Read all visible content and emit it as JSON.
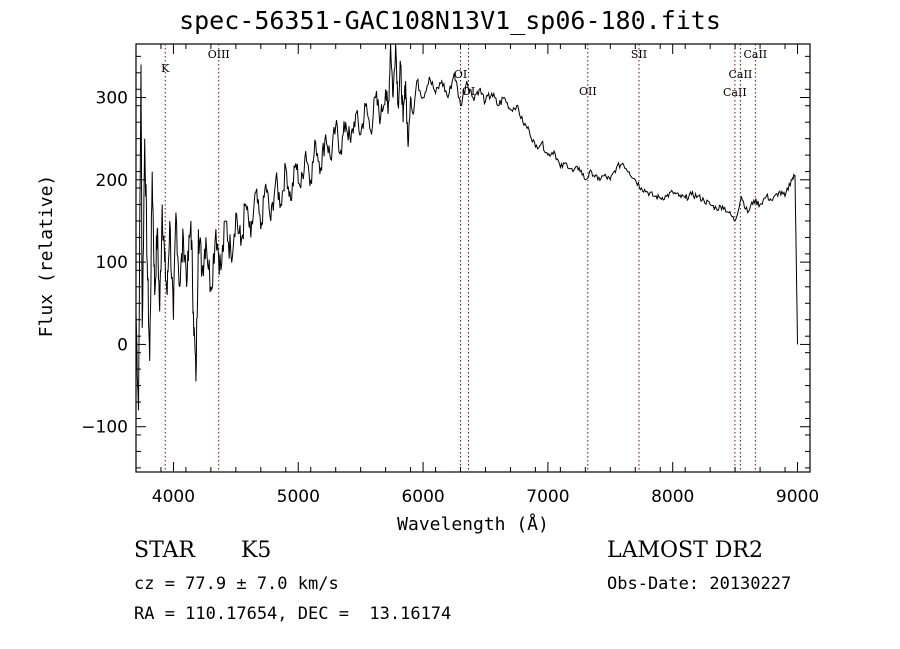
{
  "title": "spec-56351-GAC108N13V1_sp06-180.fits",
  "footer": {
    "object_class": "STAR",
    "subclass": "K5",
    "survey": "LAMOST DR2",
    "cz": "cz = 77.9 ± 7.0 km/s",
    "obs_date": "Obs-Date: 20130227",
    "radec": "RA = 110.17654, DEC =  13.16174"
  },
  "chart_data": {
    "type": "line",
    "title": "spec-56351-GAC108N13V1_sp06-180.fits",
    "xlabel": "Wavelength (Å)",
    "ylabel": "Flux (relative)",
    "xlim": [
      3700,
      9100
    ],
    "ylim": [
      -155,
      365
    ],
    "xticks": [
      {
        "value": 4000,
        "label": "4000"
      },
      {
        "value": 5000,
        "label": "5000"
      },
      {
        "value": 6000,
        "label": "6000"
      },
      {
        "value": 7000,
        "label": "7000"
      },
      {
        "value": 8000,
        "label": "8000"
      },
      {
        "value": 9000,
        "label": "9000"
      }
    ],
    "yticks": [
      {
        "value": -100,
        "label": "−100"
      },
      {
        "value": 0,
        "label": "0"
      },
      {
        "value": 100,
        "label": "100"
      },
      {
        "value": 200,
        "label": "200"
      },
      {
        "value": 300,
        "label": "300"
      }
    ],
    "line_color": "#000000",
    "marker_color": "#8b0000",
    "lines": [
      {
        "label": "K",
        "x": 3934
      },
      {
        "label": "OIII",
        "x": 4363
      },
      {
        "label": "OI",
        "x": 6300
      },
      {
        "label": "OI",
        "x": 6364
      },
      {
        "label": "OII",
        "x": 7320
      },
      {
        "label": "SII",
        "x": 7730
      },
      {
        "label": "CaII",
        "x": 8498
      },
      {
        "label": "CaII",
        "x": 8542
      },
      {
        "label": "CaII",
        "x": 8662
      }
    ],
    "series": [
      {
        "points": [
          [
            3700,
            40
          ],
          [
            3720,
            -80
          ],
          [
            3740,
            340
          ],
          [
            3750,
            20
          ],
          [
            3770,
            250
          ],
          [
            3790,
            100
          ],
          [
            3810,
            -20
          ],
          [
            3830,
            210
          ],
          [
            3850,
            60
          ],
          [
            3870,
            140
          ],
          [
            3890,
            40
          ],
          [
            3910,
            170
          ],
          [
            3930,
            100
          ],
          [
            3950,
            60
          ],
          [
            3970,
            150
          ],
          [
            4000,
            30
          ],
          [
            4020,
            160
          ],
          [
            4050,
            70
          ],
          [
            4080,
            130
          ],
          [
            4110,
            80
          ],
          [
            4140,
            150
          ],
          [
            4160,
            40
          ],
          [
            4180,
            -45
          ],
          [
            4200,
            140
          ],
          [
            4230,
            90
          ],
          [
            4260,
            130
          ],
          [
            4300,
            70
          ],
          [
            4340,
            140
          ],
          [
            4380,
            90
          ],
          [
            4420,
            150
          ],
          [
            4460,
            110
          ],
          [
            4500,
            160
          ],
          [
            4540,
            120
          ],
          [
            4580,
            170
          ],
          [
            4620,
            130
          ],
          [
            4660,
            185
          ],
          [
            4700,
            140
          ],
          [
            4740,
            195
          ],
          [
            4780,
            150
          ],
          [
            4820,
            200
          ],
          [
            4860,
            170
          ],
          [
            4900,
            215
          ],
          [
            4940,
            175
          ],
          [
            4980,
            220
          ],
          [
            5020,
            190
          ],
          [
            5060,
            235
          ],
          [
            5100,
            200
          ],
          [
            5140,
            245
          ],
          [
            5180,
            215
          ],
          [
            5220,
            255
          ],
          [
            5260,
            225
          ],
          [
            5300,
            265
          ],
          [
            5340,
            235
          ],
          [
            5380,
            270
          ],
          [
            5420,
            245
          ],
          [
            5460,
            280
          ],
          [
            5500,
            255
          ],
          [
            5540,
            290
          ],
          [
            5580,
            260
          ],
          [
            5620,
            300
          ],
          [
            5660,
            275
          ],
          [
            5700,
            310
          ],
          [
            5720,
            280
          ],
          [
            5740,
            365
          ],
          [
            5760,
            300
          ],
          [
            5780,
            370
          ],
          [
            5800,
            290
          ],
          [
            5820,
            340
          ],
          [
            5840,
            270
          ],
          [
            5860,
            320
          ],
          [
            5880,
            240
          ],
          [
            5900,
            300
          ],
          [
            5920,
            280
          ],
          [
            5950,
            320
          ],
          [
            6000,
            300
          ],
          [
            6050,
            325
          ],
          [
            6100,
            305
          ],
          [
            6150,
            320
          ],
          [
            6200,
            300
          ],
          [
            6250,
            330
          ],
          [
            6300,
            290
          ],
          [
            6350,
            320
          ],
          [
            6400,
            300
          ],
          [
            6450,
            310
          ],
          [
            6500,
            295
          ],
          [
            6550,
            305
          ],
          [
            6600,
            290
          ],
          [
            6650,
            300
          ],
          [
            6700,
            285
          ],
          [
            6750,
            290
          ],
          [
            6800,
            270
          ],
          [
            6850,
            260
          ],
          [
            6900,
            240
          ],
          [
            6950,
            245
          ],
          [
            7000,
            230
          ],
          [
            7050,
            235
          ],
          [
            7100,
            215
          ],
          [
            7150,
            220
          ],
          [
            7200,
            210
          ],
          [
            7250,
            215
          ],
          [
            7300,
            200
          ],
          [
            7350,
            210
          ],
          [
            7400,
            200
          ],
          [
            7450,
            205
          ],
          [
            7500,
            200
          ],
          [
            7550,
            215
          ],
          [
            7600,
            220
          ],
          [
            7650,
            210
          ],
          [
            7700,
            200
          ],
          [
            7750,
            190
          ],
          [
            7800,
            185
          ],
          [
            7850,
            180
          ],
          [
            7900,
            178
          ],
          [
            7950,
            180
          ],
          [
            8000,
            185
          ],
          [
            8050,
            180
          ],
          [
            8100,
            178
          ],
          [
            8150,
            182
          ],
          [
            8200,
            180
          ],
          [
            8250,
            175
          ],
          [
            8300,
            170
          ],
          [
            8350,
            165
          ],
          [
            8400,
            168
          ],
          [
            8450,
            160
          ],
          [
            8500,
            150
          ],
          [
            8550,
            180
          ],
          [
            8600,
            160
          ],
          [
            8650,
            175
          ],
          [
            8700,
            170
          ],
          [
            8750,
            180
          ],
          [
            8800,
            175
          ],
          [
            8850,
            185
          ],
          [
            8900,
            180
          ],
          [
            8950,
            200
          ],
          [
            8980,
            205
          ],
          [
            9000,
            0
          ]
        ]
      }
    ]
  }
}
